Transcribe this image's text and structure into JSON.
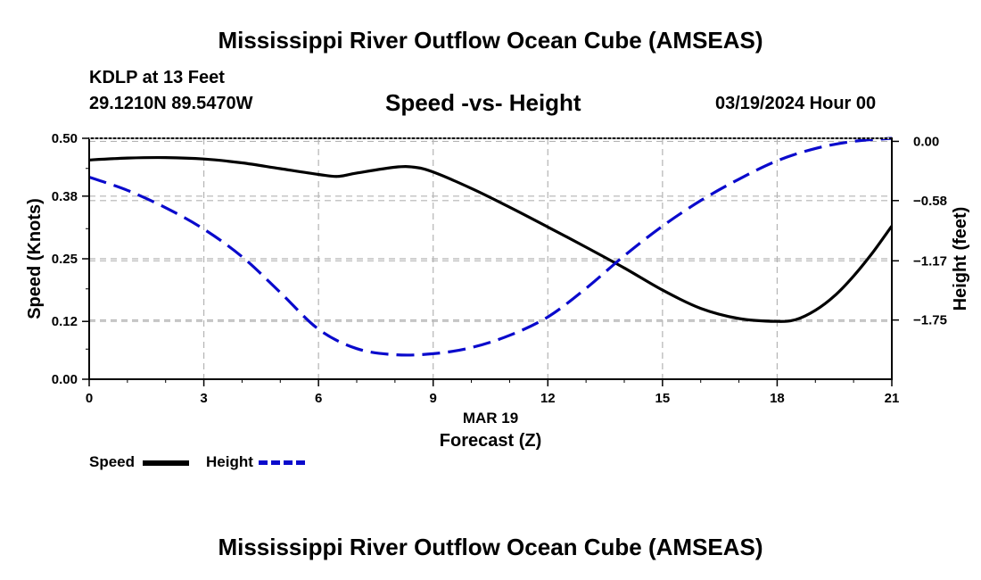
{
  "header": {
    "title": "Mississippi River Outflow Ocean Cube (AMSEAS)",
    "station": "KDLP at 13 Feet",
    "coords": "29.1210N  89.5470W",
    "subtitle": "Speed -vs- Height",
    "datetime": "03/19/2024 Hour 00"
  },
  "footer": {
    "title": "Mississippi River Outflow Ocean Cube (AMSEAS)"
  },
  "legend": {
    "speed_label": "Speed",
    "height_label": "Height"
  },
  "colors": {
    "speed": "#000000",
    "height": "#0a0acc",
    "grid": "#b4b4b4"
  },
  "chart_data": {
    "type": "line",
    "title": "Speed -vs- Height",
    "xlabel": "Forecast (Z)",
    "xlabel_date": "MAR 19",
    "ylabel": "Speed (Knots)",
    "y2label": "Height (feet)",
    "x_ticks": [
      0,
      3,
      6,
      9,
      12,
      15,
      18,
      21
    ],
    "xlim": [
      0,
      21
    ],
    "ylim": [
      0,
      0.5
    ],
    "y_ticks": [
      0.0,
      0.12,
      0.25,
      0.38,
      0.5
    ],
    "y_tick_labels": [
      "0.00",
      "0.12",
      "0.25",
      "0.38",
      "0.50"
    ],
    "y2lim": [
      -2.33,
      0.03
    ],
    "y2_ticks": [
      0.0,
      -0.58,
      -1.17,
      -1.75
    ],
    "y2_tick_labels": [
      "0.00",
      "−0.58",
      "−1.17",
      "−1.75"
    ],
    "grid": true,
    "series": [
      {
        "name": "Speed",
        "axis": "left",
        "style": "solid",
        "x": [
          0,
          1,
          2,
          3,
          4,
          5,
          6,
          6.5,
          7,
          8,
          8.5,
          9,
          10,
          11,
          12,
          13,
          14,
          15,
          16,
          17,
          18,
          18.5,
          19,
          19.5,
          20,
          20.5,
          21
        ],
        "values": [
          0.455,
          0.459,
          0.46,
          0.457,
          0.449,
          0.437,
          0.425,
          0.421,
          0.428,
          0.44,
          0.44,
          0.43,
          0.396,
          0.357,
          0.316,
          0.274,
          0.231,
          0.185,
          0.147,
          0.126,
          0.12,
          0.124,
          0.143,
          0.173,
          0.214,
          0.263,
          0.318
        ]
      },
      {
        "name": "Height",
        "axis": "right",
        "style": "dashed",
        "x": [
          0,
          1,
          2,
          3,
          4,
          5,
          6,
          7,
          8,
          9,
          10,
          11,
          12,
          13,
          14,
          15,
          16,
          17,
          18,
          19,
          20,
          21
        ],
        "values": [
          -0.35,
          -0.48,
          -0.65,
          -0.86,
          -1.13,
          -1.48,
          -1.84,
          -2.03,
          -2.09,
          -2.08,
          -2.02,
          -1.9,
          -1.72,
          -1.44,
          -1.12,
          -0.83,
          -0.58,
          -0.37,
          -0.19,
          -0.07,
          0.0,
          0.03
        ]
      }
    ]
  }
}
